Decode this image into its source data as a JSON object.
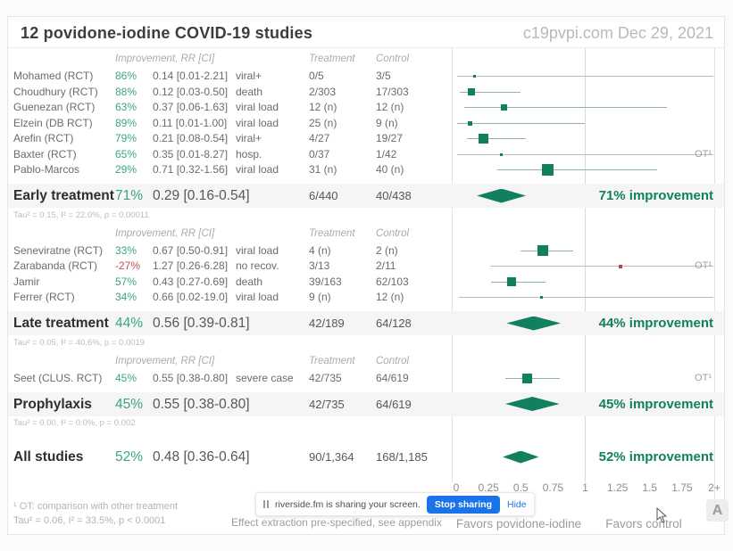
{
  "header": {
    "title": "12 povidone-iodine COVID-19 studies",
    "source": "c19pvpi.com Dec 29, 2021"
  },
  "columns": {
    "improvement": "Improvement, RR [CI]",
    "treatment": "Treatment",
    "control": "Control"
  },
  "colors": {
    "green_dark": "#12805e",
    "green_value": "#3ba586",
    "red_value": "#c0524e",
    "red_marker": "#b04a43",
    "notification_blue": "#1a73e8"
  },
  "plot": {
    "ot_label": "OT¹"
  },
  "footnotes": {
    "ot": "¹ OT: comparison with other treatment",
    "effect": "Effect extraction pre-specified, see appendix"
  },
  "notification": {
    "text": "riverside.fm is sharing your screen.",
    "button": "Stop sharing",
    "hide": "Hide"
  },
  "watermark": {
    "label": "A"
  },
  "chart_data": {
    "type": "forest",
    "title": "12 povidone-iodine COVID-19 studies",
    "x_axis": {
      "min": 0,
      "max": 2,
      "ref_line": 1,
      "ticks": [
        {
          "label": "0",
          "v": 0
        },
        {
          "label": "0.25",
          "v": 0.25
        },
        {
          "label": "0.5",
          "v": 0.5
        },
        {
          "label": "0.75",
          "v": 0.75
        },
        {
          "label": "1",
          "v": 1
        },
        {
          "label": "1.25",
          "v": 1.25
        },
        {
          "label": "1.5",
          "v": 1.5
        },
        {
          "label": "1.75",
          "v": 1.75
        },
        {
          "label": "2+",
          "v": 2
        }
      ]
    },
    "favors_left": "Favors povidone-iodine",
    "favors_right": "Favors control",
    "groups": [
      {
        "summary_label": "Early treatment",
        "tau_note": "Tau² = 0.15, I² = 22.0%, p = 0.00011",
        "studies": [
          {
            "name": "Mohamed (RCT)",
            "improvement": "86%",
            "rr_text": "0.14 [0.01-2.21]",
            "outcome": "viral+",
            "treatment": "0/5",
            "control": "3/5",
            "est": 0.14,
            "lo": 0.01,
            "hi": 2.21,
            "weight": 3,
            "ot": false,
            "neg": false
          },
          {
            "name": "Choudhury (RCT)",
            "improvement": "88%",
            "rr_text": "0.12 [0.03-0.50]",
            "outcome": "death",
            "treatment": "2/303",
            "control": "17/303",
            "est": 0.12,
            "lo": 0.03,
            "hi": 0.5,
            "weight": 8,
            "ot": false,
            "neg": false
          },
          {
            "name": "Guenezan (RCT)",
            "improvement": "63%",
            "rr_text": "0.37 [0.06-1.63]",
            "outcome": "viral load",
            "treatment": "12 (n)",
            "control": "12 (n)",
            "est": 0.37,
            "lo": 0.06,
            "hi": 1.63,
            "weight": 7,
            "ot": false,
            "neg": false
          },
          {
            "name": "Elzein (DB RCT)",
            "improvement": "89%",
            "rr_text": "0.11 [0.01-1.00]",
            "outcome": "viral load",
            "treatment": "25 (n)",
            "control": "9 (n)",
            "est": 0.11,
            "lo": 0.01,
            "hi": 1.0,
            "weight": 5,
            "ot": false,
            "neg": false
          },
          {
            "name": "Arefin (RCT)",
            "improvement": "79%",
            "rr_text": "0.21 [0.08-0.54]",
            "outcome": "viral+",
            "treatment": "4/27",
            "control": "19/27",
            "est": 0.21,
            "lo": 0.08,
            "hi": 0.54,
            "weight": 11,
            "ot": false,
            "neg": false
          },
          {
            "name": "Baxter (RCT)",
            "improvement": "65%",
            "rr_text": "0.35 [0.01-8.27]",
            "outcome": "hosp.",
            "treatment": "0/37",
            "control": "1/42",
            "est": 0.35,
            "lo": 0.01,
            "hi": 8.27,
            "weight": 3,
            "ot": true,
            "neg": false
          },
          {
            "name": "Pablo-Marcos",
            "improvement": "29%",
            "rr_text": "0.71 [0.32-1.56]",
            "outcome": "viral load",
            "treatment": "31 (n)",
            "control": "40 (n)",
            "est": 0.71,
            "lo": 0.32,
            "hi": 1.56,
            "weight": 13,
            "ot": false,
            "neg": false
          }
        ],
        "summary": {
          "improvement": "71%",
          "rr_text": "0.29 [0.16-0.54]",
          "treatment": "6/440",
          "control": "40/438",
          "est": 0.29,
          "lo": 0.16,
          "hi": 0.54,
          "plot_label": "71% improvement"
        }
      },
      {
        "summary_label": "Late treatment",
        "tau_note": "Tau² = 0.05, I² = 40.6%, p = 0.0019",
        "studies": [
          {
            "name": "Seneviratne (RCT)",
            "improvement": "33%",
            "rr_text": "0.67 [0.50-0.91]",
            "outcome": "viral load",
            "treatment": "4 (n)",
            "control": "2 (n)",
            "est": 0.67,
            "lo": 0.5,
            "hi": 0.91,
            "weight": 12,
            "ot": false,
            "neg": false
          },
          {
            "name": "Zarabanda (RCT)",
            "improvement": "-27%",
            "rr_text": "1.27 [0.26-6.28]",
            "outcome": "no recov.",
            "treatment": "3/13",
            "control": "2/11",
            "est": 1.27,
            "lo": 0.26,
            "hi": 6.28,
            "weight": 4,
            "ot": true,
            "neg": true
          },
          {
            "name": "Jamir",
            "improvement": "57%",
            "rr_text": "0.43 [0.27-0.69]",
            "outcome": "death",
            "treatment": "39/163",
            "control": "62/103",
            "est": 0.43,
            "lo": 0.27,
            "hi": 0.69,
            "weight": 10,
            "ot": false,
            "neg": false
          },
          {
            "name": "Ferrer (RCT)",
            "improvement": "34%",
            "rr_text": "0.66 [0.02-19.0]",
            "outcome": "viral load",
            "treatment": "9 (n)",
            "control": "12 (n)",
            "est": 0.66,
            "lo": 0.02,
            "hi": 19.0,
            "weight": 3,
            "ot": false,
            "neg": false
          }
        ],
        "summary": {
          "improvement": "44%",
          "rr_text": "0.56 [0.39-0.81]",
          "treatment": "42/189",
          "control": "64/128",
          "est": 0.56,
          "lo": 0.39,
          "hi": 0.81,
          "plot_label": "44% improvement"
        }
      },
      {
        "summary_label": "Prophylaxis",
        "tau_note": "Tau² = 0.00, I² = 0.0%, p = 0.002",
        "studies": [
          {
            "name": "Seet (CLUS. RCT)",
            "improvement": "45%",
            "rr_text": "0.55 [0.38-0.80]",
            "outcome": "severe case",
            "treatment": "42/735",
            "control": "64/619",
            "est": 0.55,
            "lo": 0.38,
            "hi": 0.8,
            "weight": 11,
            "ot": true,
            "neg": false
          }
        ],
        "summary": {
          "improvement": "45%",
          "rr_text": "0.55 [0.38-0.80]",
          "treatment": "42/735",
          "control": "64/619",
          "est": 0.55,
          "lo": 0.38,
          "hi": 0.8,
          "plot_label": "45% improvement"
        }
      }
    ],
    "overall": {
      "label": "All studies",
      "improvement": "52%",
      "rr_text": "0.48 [0.36-0.64]",
      "treatment": "90/1,364",
      "control": "168/1,185",
      "est": 0.48,
      "lo": 0.36,
      "hi": 0.64,
      "plot_label": "52% improvement",
      "tau_note": "Tau² = 0.06, I² = 33.5%, p < 0.0001"
    }
  }
}
